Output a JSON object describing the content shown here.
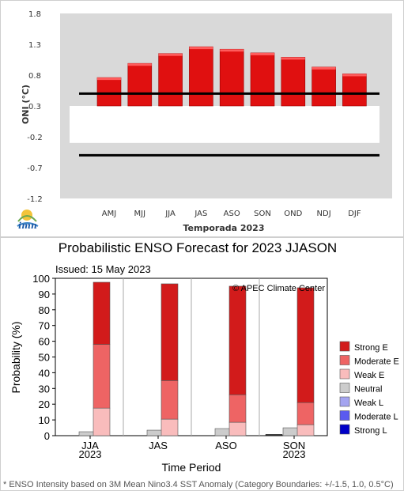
{
  "colors": {
    "oni_bar": "#e01010",
    "oni_panel": "#d9d9d9",
    "neutral_band": "#ffffff",
    "threshold_line": "#000000",
    "strong_e": "#d21b1b",
    "moderate_e": "#ee6464",
    "weak_e": "#f9bcbc",
    "neutral": "#cccccc",
    "weak_l": "#a4a4f0",
    "moderate_l": "#5a5af0",
    "strong_l": "#0000c8"
  },
  "chart_data": [
    {
      "type": "bar",
      "ylabel": "ONI (°C)",
      "xlabel": "Temporada 2023",
      "logo_text": "imn",
      "categories": [
        "AMJ",
        "MJJ",
        "JJA",
        "JAS",
        "ASO",
        "SON",
        "OND",
        "NDJ",
        "DJF"
      ],
      "values": [
        0.76,
        0.99,
        1.15,
        1.26,
        1.22,
        1.16,
        1.09,
        0.93,
        0.82
      ],
      "yticks": [
        1.8,
        1.3,
        0.8,
        0.3,
        -0.2,
        -0.7,
        -1.2
      ],
      "ylim": [
        -1.2,
        1.8
      ],
      "neutral_band": [
        -0.3,
        0.3
      ],
      "reference_lines": [
        0.5,
        -0.5
      ]
    },
    {
      "type": "bar",
      "stacked": true,
      "title": "Probabilistic ENSO Forecast for 2023 JJASON",
      "subtitle": "Issued: 15 May 2023",
      "copyright": "© APEC Climate Center",
      "ylabel": "Probability (%)",
      "xlabel": "Time Period",
      "ylim": [
        0,
        100
      ],
      "yticks": [
        0,
        10,
        20,
        30,
        40,
        50,
        60,
        70,
        80,
        90,
        100
      ],
      "footnote": "* ENSO Intensity based on 3M Mean Nino3.4 SST Anomaly (Category Boundaries: +/-1.5, 1.0, 0.5°C)",
      "groups": [
        {
          "label": "JJA",
          "year": "2023",
          "neutral": 2.5,
          "weak_e": 17.5,
          "moderate_e": 40.5,
          "strong_e": 39.5
        },
        {
          "label": "JAS",
          "year": "",
          "neutral": 3.5,
          "weak_e": 10.5,
          "moderate_e": 24.5,
          "strong_e": 61.5
        },
        {
          "label": "ASO",
          "year": "",
          "neutral": 4.5,
          "weak_e": 8.5,
          "moderate_e": 17.5,
          "strong_e": 69.0
        },
        {
          "label": "SON",
          "year": "2023",
          "neutral": 5.0,
          "weak_e": 7.0,
          "moderate_e": 14.0,
          "strong_e": 73.0
        }
      ],
      "weak_l_small": [
        0,
        0,
        0,
        0.8
      ],
      "legend": [
        "Strong E",
        "Moderate E",
        "Weak E",
        "Neutral",
        "Weak L",
        "Moderate L",
        "Strong L"
      ],
      "legend_placement": "right"
    }
  ]
}
